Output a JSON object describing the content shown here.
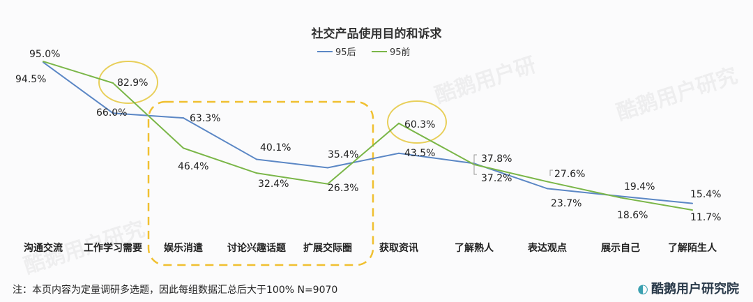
{
  "chart_data": {
    "type": "line",
    "title": "社交产品使用目的和诉求",
    "categories": [
      "沟通交流",
      "工作学习需要",
      "娱乐消遣",
      "讨论兴趣话题",
      "扩展交际圈",
      "获取资讯",
      "了解熟人",
      "表达观点",
      "展示自己",
      "了解陌生人"
    ],
    "series": [
      {
        "name": "95后",
        "color": "#5b87c5",
        "values": [
          94.5,
          66.0,
          63.3,
          40.1,
          35.4,
          43.5,
          37.8,
          23.7,
          19.4,
          15.4
        ]
      },
      {
        "name": "95前",
        "color": "#7ab648",
        "values": [
          95.0,
          82.9,
          46.4,
          32.4,
          26.3,
          60.3,
          37.2,
          27.6,
          18.6,
          11.7
        ]
      }
    ],
    "legend": "top-center",
    "ylim": [
      0,
      100
    ],
    "highlights": [
      "工作学习需要 82.9%",
      "获取资讯 60.3%",
      "娱乐消遣 – 扩展交际圈"
    ]
  },
  "note": "注：本页内容为定量调研多选题，因此每组数据汇总后大于100%  N=9070",
  "logo": "酷鹅用户研究院"
}
